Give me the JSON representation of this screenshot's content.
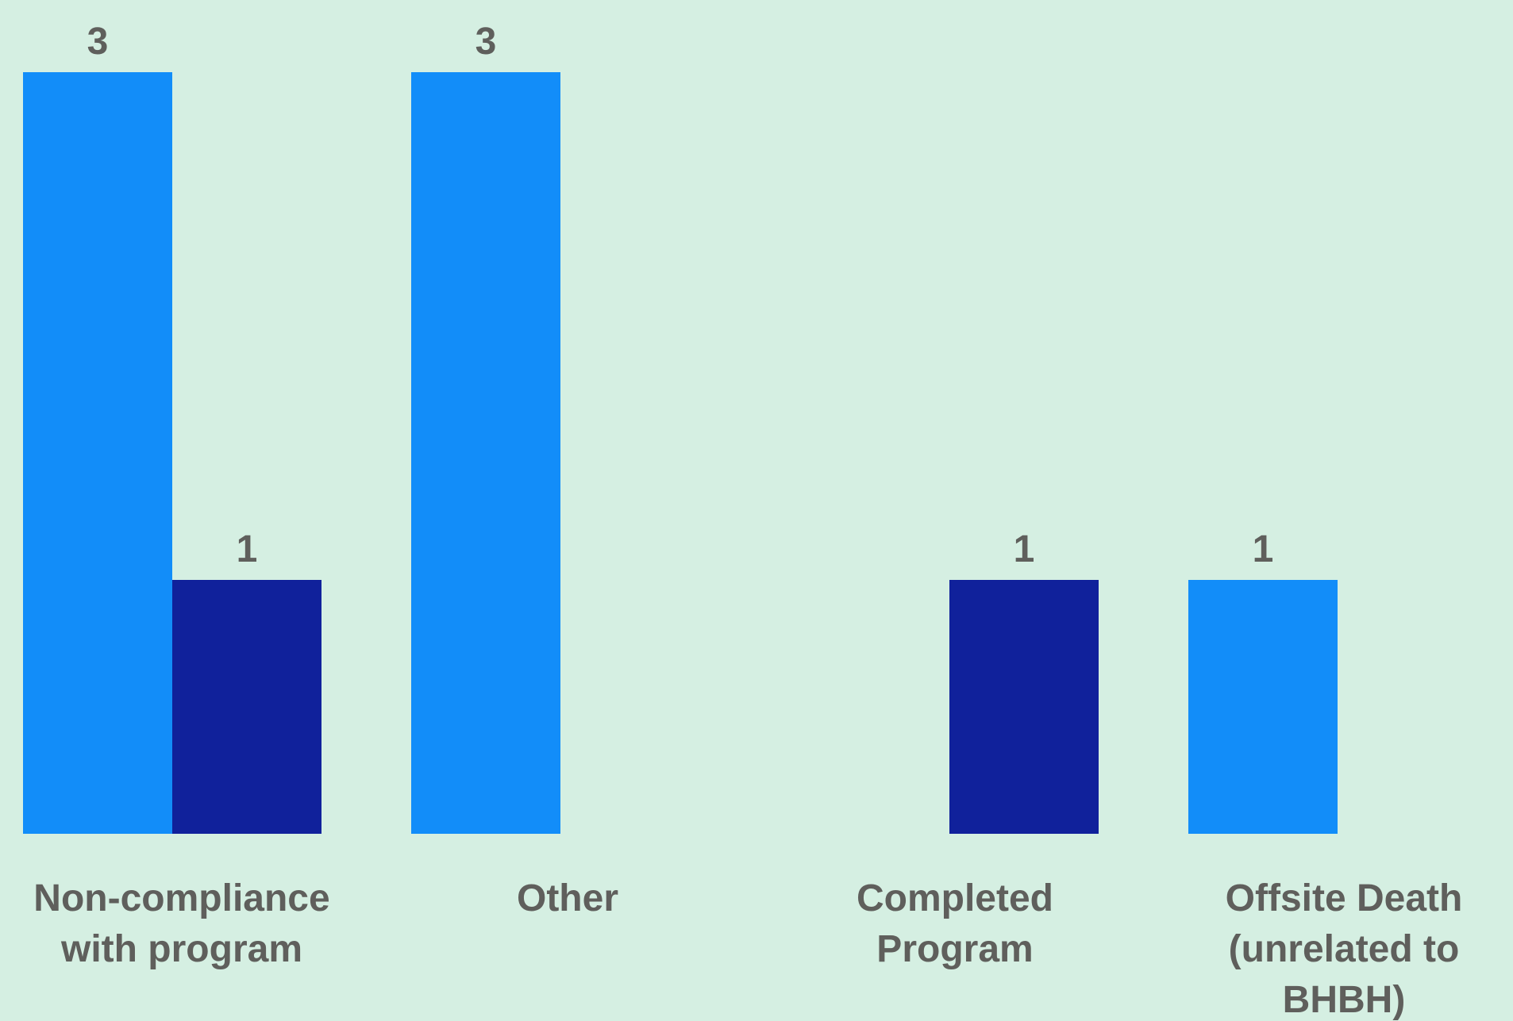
{
  "chart_data": {
    "type": "bar",
    "categories": [
      [
        "Non-compliance",
        "with program"
      ],
      [
        "Other"
      ],
      [
        "Completed",
        "Program"
      ],
      [
        "Offsite Death",
        "(unrelated to",
        "BHBH)"
      ]
    ],
    "series": [
      {
        "values": [
          3,
          3,
          null,
          1
        ],
        "color": "#128df9"
      },
      {
        "values": [
          1,
          null,
          1,
          null
        ],
        "color": "#10219b"
      }
    ],
    "ylim": [
      0,
      3
    ],
    "grid": false,
    "legend": "none"
  }
}
